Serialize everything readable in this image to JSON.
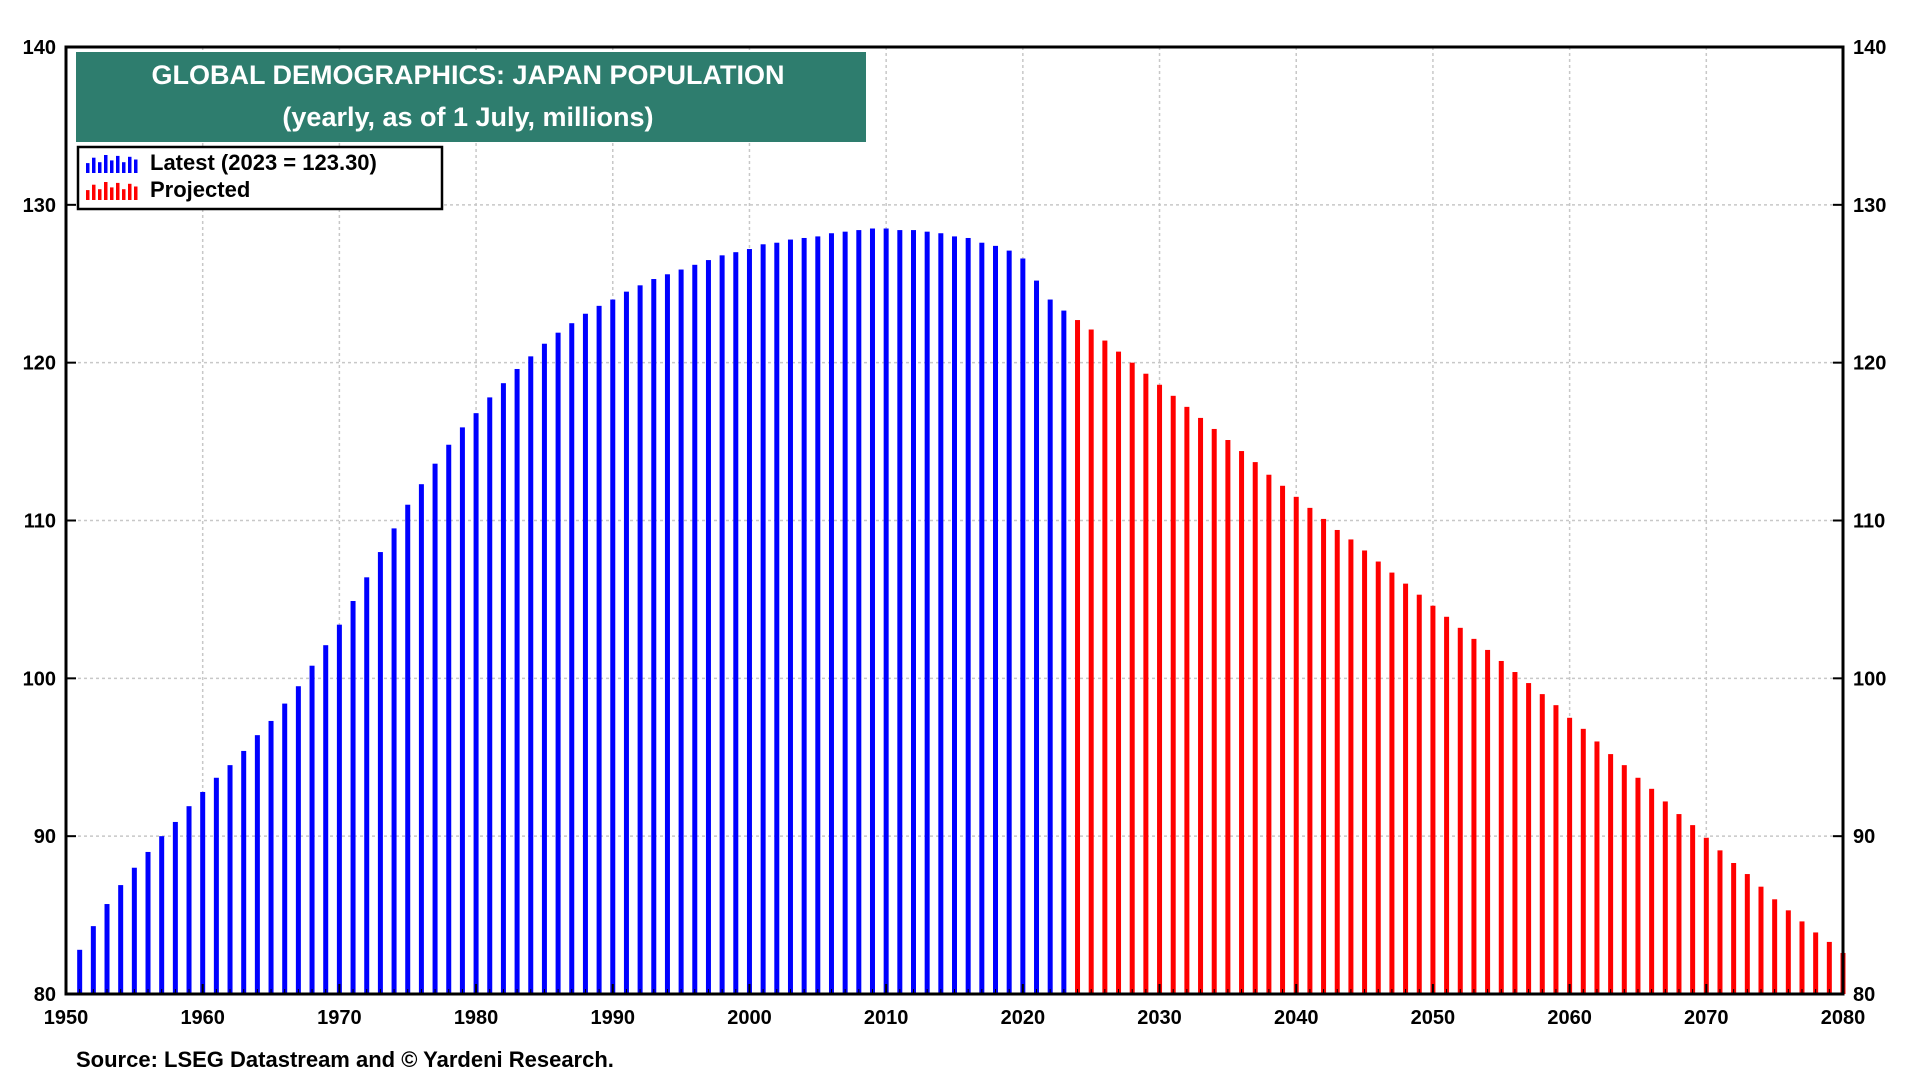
{
  "chart_data": {
    "type": "bar",
    "title": "GLOBAL DEMOGRAPHICS: JAPAN POPULATION",
    "subtitle": "(yearly, as of 1 July, millions)",
    "xlabel": "",
    "ylabel": "",
    "xlim": [
      1950,
      2080
    ],
    "ylim": [
      80,
      140
    ],
    "grid": true,
    "legend_position": "top-left",
    "x_ticks": [
      1950,
      1960,
      1970,
      1980,
      1990,
      2000,
      2010,
      2020,
      2030,
      2040,
      2050,
      2060,
      2070,
      2080
    ],
    "y_ticks": [
      80,
      90,
      100,
      110,
      120,
      130,
      140
    ],
    "series": [
      {
        "name": "Latest (2023 = 123.30)",
        "color": "#0000ff",
        "x": [
          1951,
          1952,
          1953,
          1954,
          1955,
          1956,
          1957,
          1958,
          1959,
          1960,
          1961,
          1962,
          1963,
          1964,
          1965,
          1966,
          1967,
          1968,
          1969,
          1970,
          1971,
          1972,
          1973,
          1974,
          1975,
          1976,
          1977,
          1978,
          1979,
          1980,
          1981,
          1982,
          1983,
          1984,
          1985,
          1986,
          1987,
          1988,
          1989,
          1990,
          1991,
          1992,
          1993,
          1994,
          1995,
          1996,
          1997,
          1998,
          1999,
          2000,
          2001,
          2002,
          2003,
          2004,
          2005,
          2006,
          2007,
          2008,
          2009,
          2010,
          2011,
          2012,
          2013,
          2014,
          2015,
          2016,
          2017,
          2018,
          2019,
          2020,
          2021,
          2022,
          2023
        ],
        "values": [
          82.8,
          84.3,
          85.7,
          86.9,
          88.0,
          89.0,
          90.0,
          90.9,
          91.9,
          92.8,
          93.7,
          94.5,
          95.4,
          96.4,
          97.3,
          98.4,
          99.5,
          100.8,
          102.1,
          103.4,
          104.9,
          106.4,
          108.0,
          109.5,
          111.0,
          112.3,
          113.6,
          114.8,
          115.9,
          116.8,
          117.8,
          118.7,
          119.6,
          120.4,
          121.2,
          121.9,
          122.5,
          123.1,
          123.6,
          124.0,
          124.5,
          124.9,
          125.3,
          125.6,
          125.9,
          126.2,
          126.5,
          126.8,
          127.0,
          127.2,
          127.5,
          127.6,
          127.8,
          127.9,
          128.0,
          128.2,
          128.3,
          128.4,
          128.5,
          128.5,
          128.4,
          128.4,
          128.3,
          128.2,
          128.0,
          127.9,
          127.6,
          127.4,
          127.1,
          126.6,
          125.2,
          124.0,
          123.3
        ]
      },
      {
        "name": "Projected",
        "color": "#ff0000",
        "x": [
          2024,
          2025,
          2026,
          2027,
          2028,
          2029,
          2030,
          2031,
          2032,
          2033,
          2034,
          2035,
          2036,
          2037,
          2038,
          2039,
          2040,
          2041,
          2042,
          2043,
          2044,
          2045,
          2046,
          2047,
          2048,
          2049,
          2050,
          2051,
          2052,
          2053,
          2054,
          2055,
          2056,
          2057,
          2058,
          2059,
          2060,
          2061,
          2062,
          2063,
          2064,
          2065,
          2066,
          2067,
          2068,
          2069,
          2070,
          2071,
          2072,
          2073,
          2074,
          2075,
          2076,
          2077,
          2078,
          2079,
          2080
        ],
        "values": [
          122.7,
          122.1,
          121.4,
          120.7,
          120.0,
          119.3,
          118.6,
          117.9,
          117.2,
          116.5,
          115.8,
          115.1,
          114.4,
          113.7,
          112.9,
          112.2,
          111.5,
          110.8,
          110.1,
          109.4,
          108.8,
          108.1,
          107.4,
          106.7,
          106.0,
          105.3,
          104.6,
          103.9,
          103.2,
          102.5,
          101.8,
          101.1,
          100.4,
          99.7,
          99.0,
          98.3,
          97.5,
          96.8,
          96.0,
          95.2,
          94.5,
          93.7,
          93.0,
          92.2,
          91.4,
          90.7,
          89.9,
          89.1,
          88.3,
          87.6,
          86.8,
          86.0,
          85.3,
          84.6,
          83.9,
          83.3,
          82.6
        ]
      }
    ]
  },
  "source": "Source: LSEG Datastream and © Yardeni Research."
}
